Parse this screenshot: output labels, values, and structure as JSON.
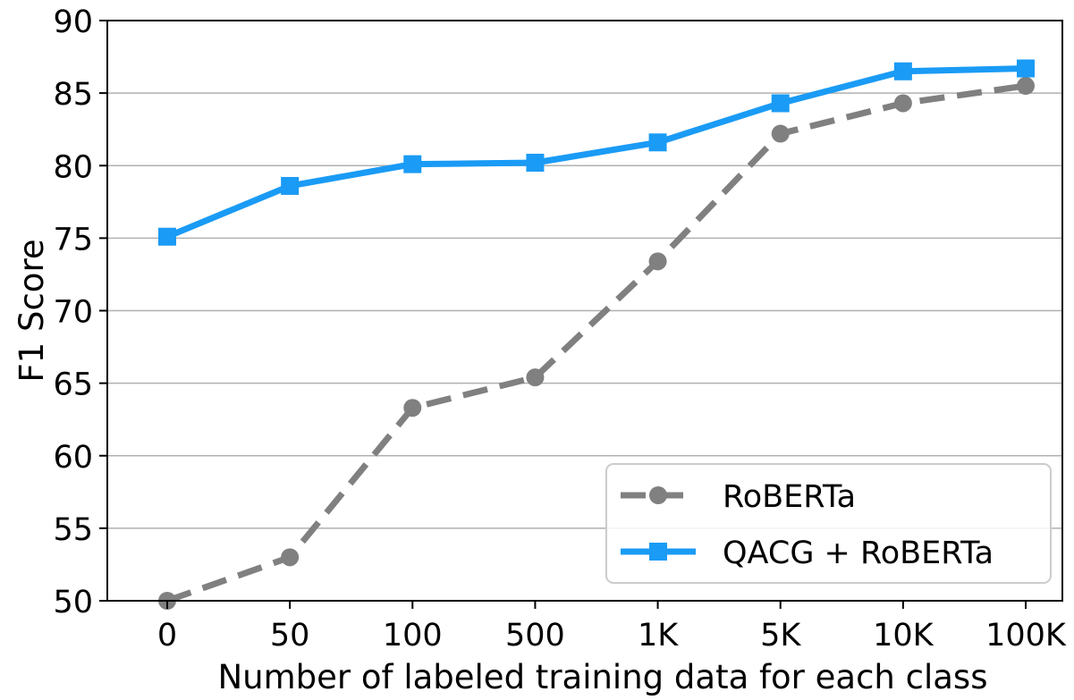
{
  "chart_data": {
    "type": "line",
    "title": "",
    "xlabel": "Number of labeled training data for each class",
    "ylabel": "F1 Score",
    "categories": [
      "0",
      "50",
      "100",
      "500",
      "1K",
      "5K",
      "10K",
      "100K"
    ],
    "ylim": [
      50,
      90
    ],
    "yticks": [
      50,
      55,
      60,
      65,
      70,
      75,
      80,
      85,
      90
    ],
    "grid": "horizontal",
    "legend_position": "lower-right",
    "series": [
      {
        "name": "RoBERTa",
        "values": [
          50.0,
          53.0,
          63.3,
          65.4,
          73.4,
          82.2,
          84.3,
          85.5
        ],
        "color": "#808080",
        "line_style": "dashed",
        "marker": "circle"
      },
      {
        "name": "QACG + RoBERTa",
        "values": [
          75.1,
          78.6,
          80.1,
          80.2,
          81.6,
          84.3,
          86.5,
          86.7
        ],
        "color": "#1a9bf5",
        "line_style": "solid",
        "marker": "square"
      }
    ]
  }
}
